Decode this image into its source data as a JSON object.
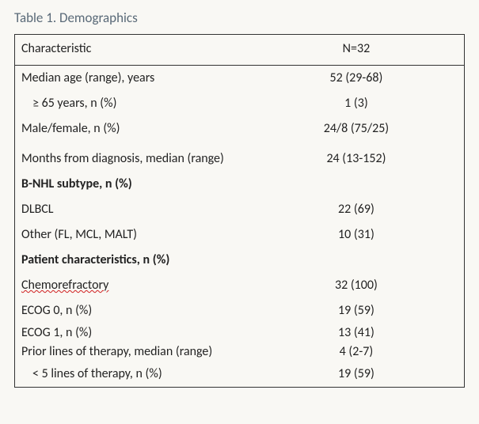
{
  "title": "Table 1. Demographics",
  "header": {
    "characteristic": "Characteristic",
    "n_label": "N=32"
  },
  "rows": {
    "median_age": {
      "label": "Median age (range), years",
      "value": "52 (29-68)"
    },
    "ge65": {
      "label": "≥ 65 years, n (%)",
      "value": "1 (3)"
    },
    "sex": {
      "label": "Male/female, n (%)",
      "value": "24/8 (75/25)"
    },
    "months_dx": {
      "label": "Months from diagnosis, median (range)",
      "value": "24 (13-152)"
    },
    "subtype_header": {
      "label": "B-NHL subtype, n (%)"
    },
    "dlbcl": {
      "label": "DLBCL",
      "value": "22 (69)"
    },
    "other_sub": {
      "label": "Other (FL, MCL, MALT)",
      "value": "10 (31)"
    },
    "pt_char_header": {
      "label": "Patient characteristics, n (%)"
    },
    "chemoref": {
      "label": "Chemorefractory",
      "value": "32 (100)"
    },
    "ecog0": {
      "label": "ECOG 0, n (%)",
      "value": "19 (59)"
    },
    "ecog1": {
      "label": "ECOG 1, n (%)",
      "value": "13 (41)"
    },
    "prior_lines": {
      "label": "Prior lines of therapy, median (range)",
      "value": "4 (2-7)"
    },
    "lt5": {
      "label": "< 5 lines of therapy, n (%)",
      "value": "19 (59)"
    }
  },
  "style": {
    "background_color": "#f9f8f4",
    "title_color": "#5a6a78",
    "text_color": "#222222",
    "border_color": "#333333",
    "font_family": "Calibri",
    "title_fontsize_pt": 13,
    "body_fontsize_pt": 12,
    "spellcheck_underline_color": "#d02020",
    "col_widths_pct": [
      52,
      48
    ]
  }
}
